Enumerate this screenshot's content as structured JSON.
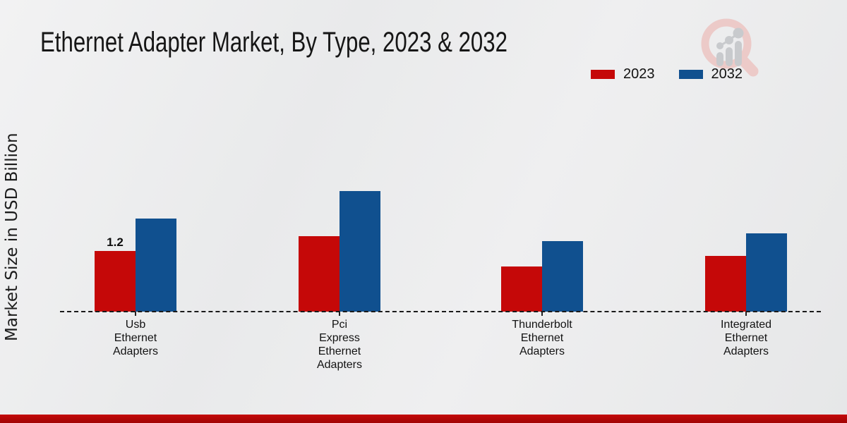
{
  "title": "Ethernet Adapter Market, By Type, 2023 & 2032",
  "y_axis_label": "Market Size in USD Billion",
  "legend": [
    {
      "label": "2023",
      "color": "#c50808"
    },
    {
      "label": "2032",
      "color": "#10508f"
    }
  ],
  "watermark_icon": "magnifier-bar-chart-logo-watermark",
  "colors": {
    "series_2023": "#c50808",
    "series_2032": "#10508f",
    "baseline": "#1a1a1a",
    "bottom_accent": "#b50707",
    "background": "#eaebec"
  },
  "chart_data": {
    "type": "bar",
    "title": "Ethernet Adapter Market, By Type, 2023 & 2032",
    "xlabel": "",
    "ylabel": "Market Size in USD Billion",
    "categories": [
      "Usb Ethernet Adapters",
      "Pci Express Ethernet Adapters",
      "Thunderbolt Ethernet Adapters",
      "Integrated Ethernet Adapters"
    ],
    "category_lines": [
      [
        "Usb",
        "Ethernet",
        "Adapters"
      ],
      [
        "Pci",
        "Express",
        "Ethernet",
        "Adapters"
      ],
      [
        "Thunderbolt",
        "Ethernet",
        "Adapters"
      ],
      [
        "Integrated",
        "Ethernet",
        "Adapters"
      ]
    ],
    "series": [
      {
        "name": "2023",
        "color": "#c50808",
        "values": [
          1.2,
          1.5,
          0.9,
          1.1
        ],
        "value_labels": [
          "1.2",
          "",
          "",
          ""
        ]
      },
      {
        "name": "2032",
        "color": "#10508f",
        "values": [
          1.85,
          2.4,
          1.4,
          1.55
        ],
        "value_labels": [
          "",
          "",
          "",
          ""
        ]
      }
    ],
    "ylim": [
      0,
      2.5
    ],
    "grid": false,
    "y_ticks_visible": false,
    "legend_position": "top-right",
    "baseline_style": "dashed"
  }
}
